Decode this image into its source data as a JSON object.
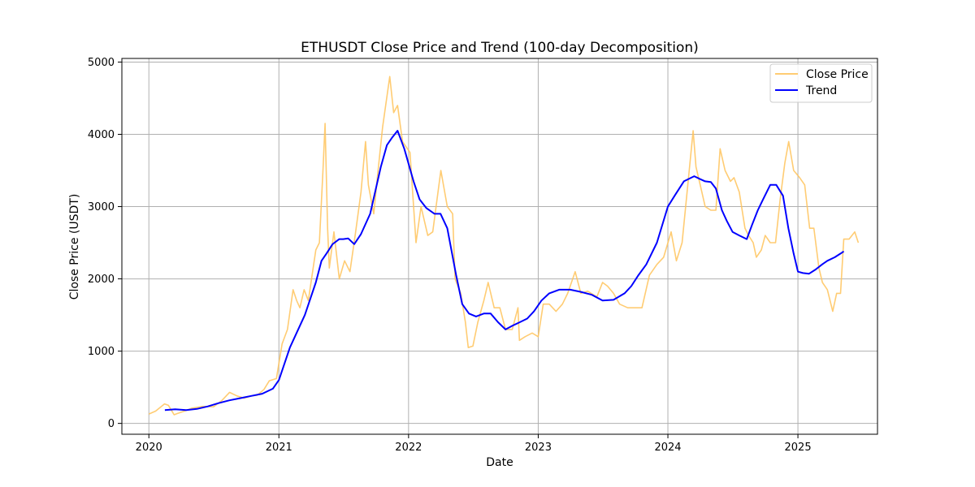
{
  "chart_data": {
    "type": "line",
    "title": "ETHUSDT Close Price and Trend (100-day Decomposition)",
    "xlabel": "Date",
    "ylabel": "Close Price (USDT)",
    "xlim": [
      "2019-10-17",
      "2025-08-13"
    ],
    "ylim": [
      -150,
      5050
    ],
    "x_ticks": [
      "2020-01-01",
      "2021-01-01",
      "2022-01-01",
      "2023-01-01",
      "2024-01-01",
      "2025-01-01"
    ],
    "x_tick_labels": [
      "2020",
      "2021",
      "2022",
      "2023",
      "2024",
      "2025"
    ],
    "y_ticks": [
      0,
      1000,
      2000,
      3000,
      4000,
      5000
    ],
    "y_tick_labels": [
      "0",
      "1000",
      "2000",
      "3000",
      "4000",
      "5000"
    ],
    "grid": true,
    "legend_position": "top-right",
    "series": [
      {
        "name": "Close Price",
        "color": "#ffc35a",
        "opacity": 0.85,
        "x": [
          "2020-01-01",
          "2020-01-20",
          "2020-02-14",
          "2020-02-25",
          "2020-03-12",
          "2020-03-20",
          "2020-04-10",
          "2020-05-01",
          "2020-06-01",
          "2020-07-01",
          "2020-07-25",
          "2020-08-15",
          "2020-09-05",
          "2020-09-25",
          "2020-10-15",
          "2020-11-01",
          "2020-11-20",
          "2020-12-05",
          "2020-12-25",
          "2021-01-10",
          "2021-01-25",
          "2021-02-10",
          "2021-02-20",
          "2021-03-01",
          "2021-03-13",
          "2021-03-25",
          "2021-04-15",
          "2021-04-25",
          "2021-05-05",
          "2021-05-11",
          "2021-05-18",
          "2021-05-23",
          "2021-06-05",
          "2021-06-20",
          "2021-07-05",
          "2021-07-20",
          "2021-08-05",
          "2021-08-20",
          "2021-09-02",
          "2021-09-10",
          "2021-09-25",
          "2021-10-05",
          "2021-10-20",
          "2021-11-09",
          "2021-11-20",
          "2021-12-01",
          "2021-12-15",
          "2022-01-05",
          "2022-01-22",
          "2022-02-05",
          "2022-02-24",
          "2022-03-10",
          "2022-04-02",
          "2022-04-20",
          "2022-05-05",
          "2022-05-12",
          "2022-05-28",
          "2022-06-10",
          "2022-06-18",
          "2022-07-01",
          "2022-07-15",
          "2022-08-01",
          "2022-08-13",
          "2022-08-30",
          "2022-09-15",
          "2022-10-01",
          "2022-10-20",
          "2022-11-05",
          "2022-11-09",
          "2022-11-25",
          "2022-12-15",
          "2023-01-01",
          "2023-01-15",
          "2023-02-01",
          "2023-02-20",
          "2023-03-10",
          "2023-03-25",
          "2023-04-15",
          "2023-05-01",
          "2023-05-20",
          "2023-06-15",
          "2023-07-01",
          "2023-07-15",
          "2023-08-01",
          "2023-08-18",
          "2023-09-10",
          "2023-10-01",
          "2023-10-20",
          "2023-11-10",
          "2023-12-01",
          "2023-12-20",
          "2024-01-10",
          "2024-01-25",
          "2024-02-10",
          "2024-02-28",
          "2024-03-12",
          "2024-03-20",
          "2024-04-01",
          "2024-04-15",
          "2024-05-01",
          "2024-05-15",
          "2024-05-27",
          "2024-06-10",
          "2024-06-25",
          "2024-07-05",
          "2024-07-20",
          "2024-08-05",
          "2024-08-15",
          "2024-08-28",
          "2024-09-06",
          "2024-09-20",
          "2024-10-01",
          "2024-10-15",
          "2024-10-30",
          "2024-11-12",
          "2024-11-25",
          "2024-12-06",
          "2024-12-20",
          "2025-01-06",
          "2025-01-20",
          "2025-02-03",
          "2025-02-15",
          "2025-03-01",
          "2025-03-11",
          "2025-03-25",
          "2025-04-09",
          "2025-04-20",
          "2025-05-01",
          "2025-05-10",
          "2025-05-25",
          "2025-06-10",
          "2025-06-20"
        ],
        "values": [
          130,
          170,
          270,
          250,
          120,
          135,
          170,
          210,
          235,
          230,
          320,
          430,
          380,
          350,
          380,
          390,
          470,
          590,
          620,
          1100,
          1300,
          1850,
          1700,
          1600,
          1850,
          1700,
          2400,
          2500,
          3500,
          4150,
          2700,
          2150,
          2650,
          2000,
          2250,
          2100,
          2650,
          3200,
          3900,
          3300,
          2900,
          3400,
          4100,
          4800,
          4300,
          4400,
          3900,
          3750,
          2500,
          3000,
          2600,
          2650,
          3500,
          3000,
          2900,
          2000,
          1800,
          1400,
          1050,
          1070,
          1400,
          1700,
          1950,
          1600,
          1600,
          1300,
          1300,
          1600,
          1150,
          1200,
          1250,
          1200,
          1650,
          1650,
          1550,
          1650,
          1800,
          2100,
          1800,
          1830,
          1750,
          1950,
          1900,
          1800,
          1650,
          1600,
          1600,
          1600,
          2050,
          2200,
          2300,
          2650,
          2250,
          2500,
          3400,
          4050,
          3550,
          3300,
          3000,
          2950,
          2950,
          3800,
          3500,
          3350,
          3400,
          3200,
          2700,
          2600,
          2500,
          2300,
          2400,
          2600,
          2500,
          2500,
          3100,
          3600,
          3900,
          3500,
          3400,
          3300,
          2700,
          2700,
          2150,
          1950,
          1850,
          1550,
          1800,
          1800,
          2550,
          2550,
          2650,
          2500
        ]
      },
      {
        "name": "Trend",
        "color": "#0000ff",
        "x": [
          "2020-02-15",
          "2020-03-15",
          "2020-04-15",
          "2020-05-15",
          "2020-06-15",
          "2020-07-15",
          "2020-08-15",
          "2020-09-15",
          "2020-10-15",
          "2020-11-15",
          "2020-12-15",
          "2021-01-01",
          "2021-02-01",
          "2021-03-15",
          "2021-04-15",
          "2021-05-01",
          "2021-05-15",
          "2021-06-01",
          "2021-06-20",
          "2021-07-01",
          "2021-07-15",
          "2021-08-01",
          "2021-08-20",
          "2021-09-15",
          "2021-10-15",
          "2021-11-01",
          "2021-11-15",
          "2021-12-01",
          "2021-12-20",
          "2022-01-15",
          "2022-02-01",
          "2022-02-20",
          "2022-03-15",
          "2022-04-01",
          "2022-04-20",
          "2022-05-15",
          "2022-06-01",
          "2022-06-20",
          "2022-07-10",
          "2022-08-01",
          "2022-08-20",
          "2022-09-10",
          "2022-10-01",
          "2022-10-20",
          "2022-11-10",
          "2022-12-01",
          "2022-12-20",
          "2023-01-10",
          "2023-02-01",
          "2023-03-01",
          "2023-04-01",
          "2023-05-01",
          "2023-06-01",
          "2023-07-01",
          "2023-08-01",
          "2023-09-01",
          "2023-09-20",
          "2023-10-10",
          "2023-11-01",
          "2023-12-01",
          "2024-01-01",
          "2024-01-20",
          "2024-02-15",
          "2024-03-15",
          "2024-04-01",
          "2024-04-15",
          "2024-05-01",
          "2024-05-15",
          "2024-06-01",
          "2024-06-15",
          "2024-07-01",
          "2024-07-20",
          "2024-08-10",
          "2024-08-25",
          "2024-09-10",
          "2024-09-25",
          "2024-10-15",
          "2024-11-01",
          "2024-11-20",
          "2024-12-05",
          "2024-12-20",
          "2025-01-01",
          "2025-01-15",
          "2025-02-01",
          "2025-02-20",
          "2025-03-10",
          "2025-03-25",
          "2025-04-15",
          "2025-05-01",
          "2025-05-10"
        ],
        "values": [
          185,
          195,
          185,
          200,
          235,
          280,
          320,
          350,
          380,
          410,
          480,
          600,
          1050,
          1500,
          1950,
          2250,
          2350,
          2480,
          2550,
          2550,
          2560,
          2480,
          2620,
          2900,
          3550,
          3850,
          3950,
          4050,
          3800,
          3350,
          3100,
          2980,
          2900,
          2900,
          2700,
          2050,
          1650,
          1520,
          1480,
          1520,
          1520,
          1400,
          1300,
          1350,
          1400,
          1450,
          1550,
          1700,
          1800,
          1850,
          1850,
          1820,
          1780,
          1700,
          1710,
          1800,
          1900,
          2050,
          2200,
          2500,
          3000,
          3150,
          3350,
          3420,
          3380,
          3350,
          3340,
          3250,
          2950,
          2800,
          2650,
          2600,
          2550,
          2750,
          2950,
          3100,
          3300,
          3300,
          3150,
          2700,
          2350,
          2100,
          2080,
          2070,
          2130,
          2200,
          2250,
          2300,
          2350,
          2380
        ]
      }
    ]
  }
}
